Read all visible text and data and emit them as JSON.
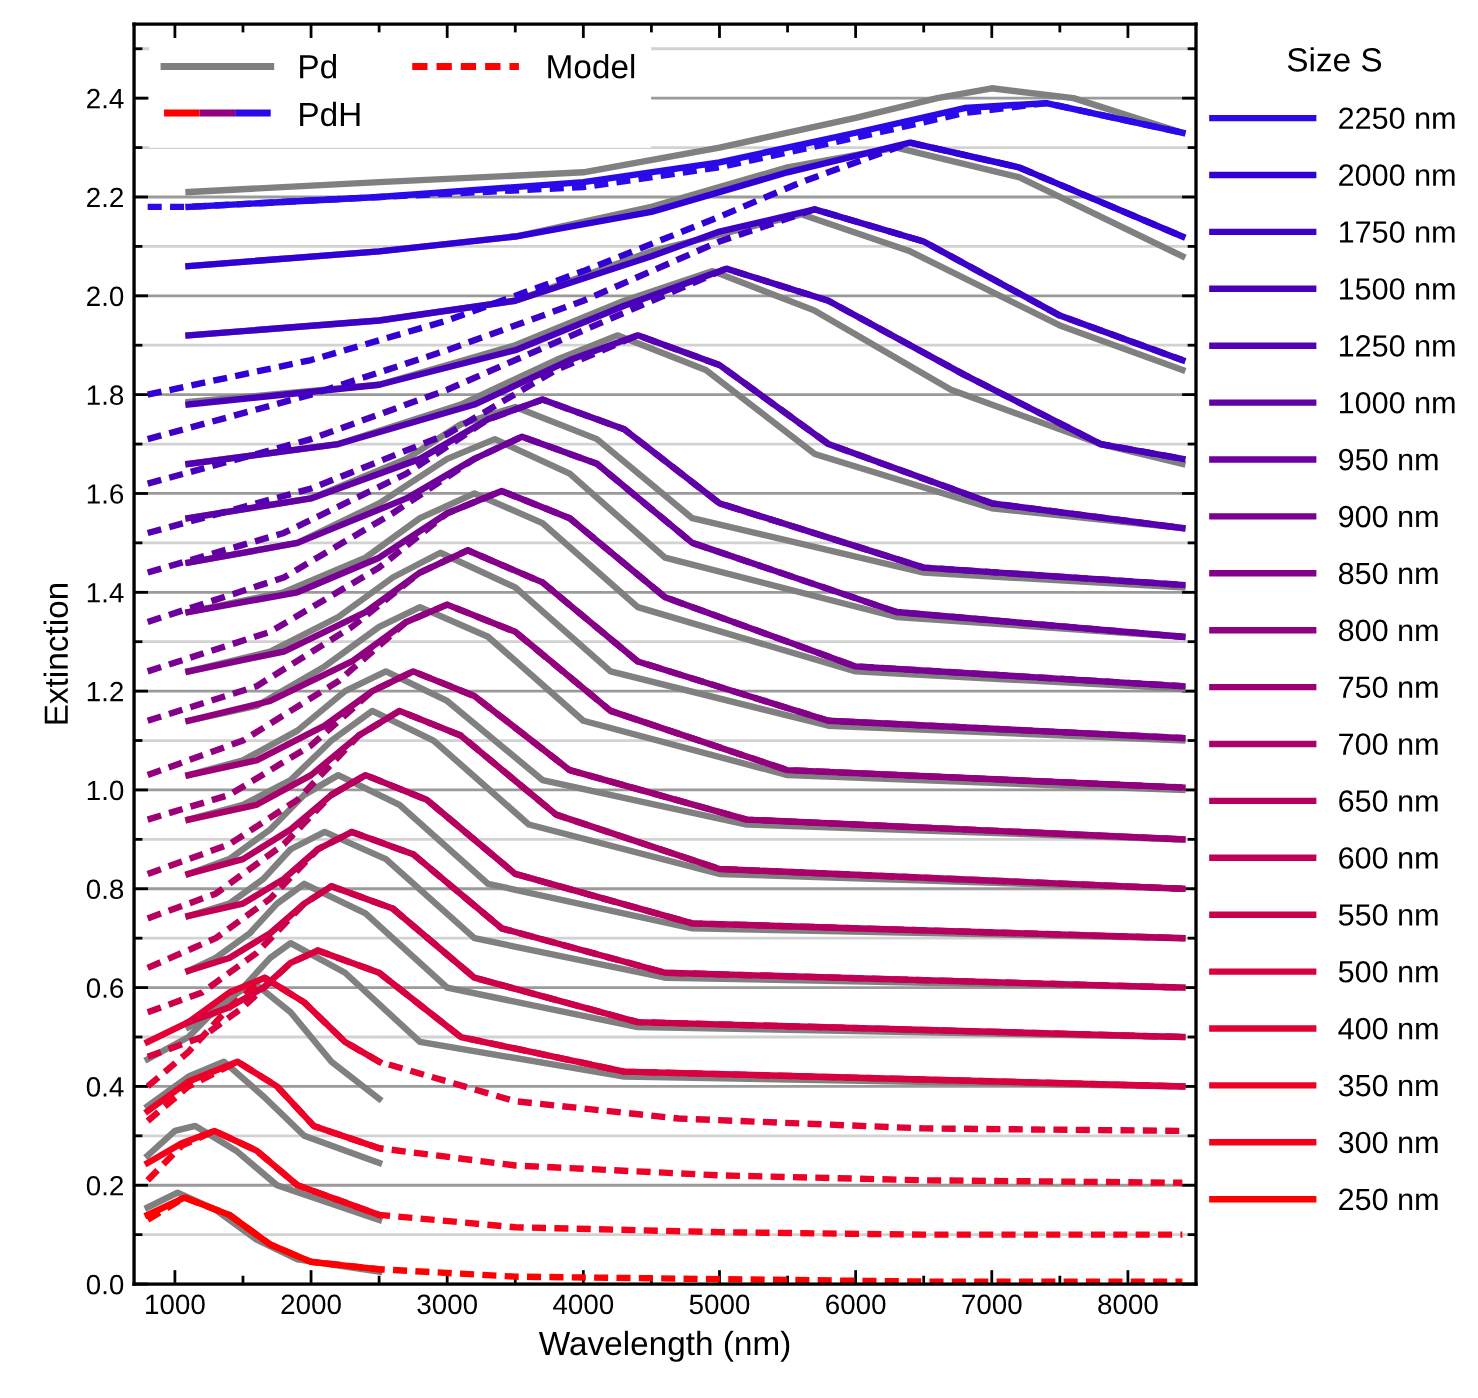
{
  "chart_data": {
    "type": "line",
    "xlabel": "Wavelength (nm)",
    "ylabel": "Extinction",
    "legend_title": "Size S",
    "legend": "top right",
    "grid": "y",
    "annotations": [
      "PdH"
    ],
    "xlim": [
      700,
      8500
    ],
    "ylim": [
      0,
      2.55
    ],
    "xticks": [
      1000,
      {
        "value": 1500,
        "label": null
      },
      2000,
      {
        "value": 2500,
        "label": null
      },
      3000,
      {
        "value": 3500,
        "label": null
      },
      4000,
      {
        "value": 4500,
        "label": null
      },
      5000,
      {
        "value": 5500,
        "label": null
      },
      6000,
      {
        "value": 6500,
        "label": null
      },
      7000,
      {
        "value": 7500,
        "label": null
      },
      8000
    ],
    "yticks": [
      {
        "value": 0,
        "label": "0.0"
      },
      {
        "value": 0.1,
        "label": null
      },
      0.2,
      {
        "value": 0.3,
        "label": null
      },
      0.4,
      {
        "value": 0.5,
        "label": null
      },
      0.6,
      {
        "value": 0.7,
        "label": null
      },
      0.8,
      {
        "value": 0.9,
        "label": null
      },
      {
        "value": 1,
        "label": "1.0"
      },
      {
        "value": 1.1,
        "label": null
      },
      1.2,
      {
        "value": 1.3,
        "label": null
      },
      1.4,
      {
        "value": 1.5,
        "label": null
      },
      1.6,
      {
        "value": 1.7,
        "label": null
      },
      1.8,
      {
        "value": 1.9,
        "label": null
      },
      {
        "value": 2,
        "label": "2.0"
      },
      {
        "value": 2.1,
        "label": null
      },
      2.2,
      {
        "value": 2.3,
        "label": null
      },
      2.4,
      {
        "value": 2.5,
        "label": null
      }
    ],
    "series": [
      {
        "name": "Pd",
        "color": "#808080",
        "line_style": "solid",
        "x": [
          800,
          1020,
          1300,
          1600,
          1900,
          2500
        ],
        "values": [
          0.155,
          0.185,
          0.15,
          0.09,
          0.05,
          0.025
        ]
      },
      {
        "color": "#808080",
        "line_style": "solid",
        "x": [
          800,
          1000,
          1150,
          1450,
          1750,
          2500
        ],
        "values": [
          0.26,
          0.31,
          0.32,
          0.27,
          0.2,
          0.13
        ]
      },
      {
        "color": "#808080",
        "line_style": "solid",
        "x": [
          800,
          1100,
          1360,
          1650,
          1950,
          2500
        ],
        "values": [
          0.36,
          0.42,
          0.45,
          0.38,
          0.3,
          0.245
        ]
      },
      {
        "color": "#808080",
        "line_style": "solid",
        "x": [
          800,
          1100,
          1350,
          1580,
          1850,
          2150,
          2500
        ],
        "values": [
          0.455,
          0.5,
          0.57,
          0.61,
          0.55,
          0.45,
          0.375
        ]
      },
      {
        "color": "#808080",
        "line_style": "solid",
        "x": [
          1100,
          1300,
          1500,
          1700,
          1850,
          2250,
          2800,
          4300,
          8400
        ],
        "values": [
          0.52,
          0.55,
          0.6,
          0.66,
          0.69,
          0.63,
          0.49,
          0.42,
          0.4
        ]
      },
      {
        "color": "#808080",
        "line_style": "solid",
        "x": [
          1100,
          1300,
          1550,
          1750,
          1950,
          2400,
          3000,
          4400,
          8400
        ],
        "values": [
          0.634,
          0.66,
          0.71,
          0.77,
          0.81,
          0.75,
          0.6,
          0.52,
          0.5
        ]
      },
      {
        "color": "#808080",
        "line_style": "solid",
        "x": [
          1100,
          1400,
          1650,
          1850,
          2100,
          2550,
          3200,
          4600,
          8400
        ],
        "values": [
          0.745,
          0.77,
          0.82,
          0.88,
          0.915,
          0.86,
          0.7,
          0.62,
          0.6
        ]
      },
      {
        "color": "#808080",
        "line_style": "solid",
        "x": [
          1100,
          1400,
          1700,
          1950,
          2200,
          2650,
          3300,
          4800,
          8400
        ],
        "values": [
          0.83,
          0.86,
          0.92,
          0.99,
          1.03,
          0.97,
          0.81,
          0.72,
          0.7
        ]
      },
      {
        "color": "#808080",
        "line_style": "solid",
        "x": [
          1100,
          1500,
          1850,
          2150,
          2450,
          2900,
          3600,
          5000,
          8400
        ],
        "values": [
          0.94,
          0.97,
          1.02,
          1.1,
          1.16,
          1.1,
          0.93,
          0.83,
          0.8
        ]
      },
      {
        "color": "#808080",
        "line_style": "solid",
        "x": [
          1100,
          1500,
          1900,
          2250,
          2550,
          3000,
          3700,
          5200,
          8400
        ],
        "values": [
          1.03,
          1.06,
          1.12,
          1.2,
          1.24,
          1.18,
          1.02,
          0.93,
          0.9
        ]
      },
      {
        "color": "#808080",
        "line_style": "solid",
        "x": [
          1100,
          1600,
          2100,
          2500,
          2800,
          3300,
          4000,
          5500,
          8400
        ],
        "values": [
          1.14,
          1.17,
          1.25,
          1.33,
          1.37,
          1.31,
          1.14,
          1.03,
          1.0
        ]
      },
      {
        "color": "#808080",
        "line_style": "solid",
        "x": [
          1100,
          1700,
          2200,
          2600,
          2950,
          3500,
          4200,
          5800,
          8400
        ],
        "values": [
          1.24,
          1.28,
          1.35,
          1.43,
          1.48,
          1.41,
          1.24,
          1.13,
          1.1
        ]
      },
      {
        "color": "#808080",
        "line_style": "solid",
        "x": [
          1100,
          1800,
          2400,
          2800,
          3200,
          3700,
          4400,
          6000,
          8400
        ],
        "values": [
          1.36,
          1.4,
          1.47,
          1.55,
          1.6,
          1.54,
          1.37,
          1.24,
          1.205
        ]
      },
      {
        "color": "#808080",
        "line_style": "solid",
        "x": [
          1100,
          1900,
          2500,
          3000,
          3350,
          3900,
          4600,
          6300,
          8400
        ],
        "values": [
          1.46,
          1.5,
          1.58,
          1.67,
          1.71,
          1.64,
          1.47,
          1.35,
          1.31
        ]
      },
      {
        "color": "#808080",
        "line_style": "solid",
        "x": [
          1100,
          2000,
          2700,
          3100,
          3500,
          4100,
          4800,
          6500,
          8400
        ],
        "values": [
          1.55,
          1.59,
          1.67,
          1.74,
          1.775,
          1.71,
          1.55,
          1.44,
          1.41
        ]
      },
      {
        "color": "#808080",
        "line_style": "solid",
        "x": [
          1100,
          2200,
          3100,
          3800,
          4250,
          4900,
          5700,
          7000,
          8400
        ],
        "values": [
          1.66,
          1.7,
          1.78,
          1.87,
          1.92,
          1.85,
          1.68,
          1.57,
          1.53
        ]
      },
      {
        "color": "#808080",
        "line_style": "solid",
        "x": [
          1100,
          2500,
          3500,
          4300,
          4950,
          5700,
          6700,
          7800,
          8400
        ],
        "values": [
          1.785,
          1.82,
          1.9,
          1.99,
          2.05,
          1.97,
          1.81,
          1.7,
          1.66
        ]
      },
      {
        "color": "#808080",
        "line_style": "solid",
        "x": [
          1100,
          2500,
          3500,
          4500,
          5600,
          6400,
          7500,
          8400
        ],
        "values": [
          1.92,
          1.95,
          1.99,
          2.09,
          2.165,
          2.09,
          1.94,
          1.85
        ]
      },
      {
        "color": "#808080",
        "line_style": "solid",
        "x": [
          1100,
          2500,
          3500,
          4500,
          5500,
          6300,
          7200,
          8400
        ],
        "values": [
          2.06,
          2.09,
          2.12,
          2.18,
          2.26,
          2.3,
          2.24,
          2.08
        ]
      },
      {
        "color": "#808080",
        "line_style": "solid",
        "x": [
          1100,
          2500,
          4000,
          5000,
          6000,
          6600,
          7000,
          7600,
          8400
        ],
        "values": [
          2.21,
          2.23,
          2.25,
          2.3,
          2.36,
          2.4,
          2.42,
          2.4,
          2.33
        ]
      },
      {
        "name": "250 nm",
        "color": "#ff0000",
        "line_style": "solid",
        "x": [
          800,
          1070,
          1400,
          1700,
          2000,
          2500
        ],
        "values": [
          0.14,
          0.175,
          0.14,
          0.08,
          0.045,
          0.03
        ]
      },
      {
        "name": "300 nm",
        "color": "#f7001a",
        "line_style": "solid",
        "x": [
          800,
          1050,
          1290,
          1600,
          1900,
          2500
        ],
        "values": [
          0.245,
          0.285,
          0.31,
          0.27,
          0.2,
          0.14
        ]
      },
      {
        "name": "350 nm",
        "color": "#ee0027",
        "line_style": "solid",
        "x": [
          800,
          1100,
          1460,
          1750,
          2020,
          2500
        ],
        "values": [
          0.35,
          0.41,
          0.45,
          0.4,
          0.32,
          0.275
        ]
      },
      {
        "name": "400 nm",
        "color": "#e50033",
        "line_style": "solid",
        "x": [
          800,
          1100,
          1400,
          1660,
          1950,
          2250,
          2500
        ],
        "values": [
          0.49,
          0.53,
          0.59,
          0.62,
          0.57,
          0.49,
          0.45
        ]
      },
      {
        "name": "500 nm",
        "color": "#d9003f",
        "line_style": "solid",
        "x": [
          1100,
          1400,
          1650,
          1850,
          2050,
          2500,
          3100,
          4300,
          8400
        ],
        "values": [
          0.53,
          0.56,
          0.6,
          0.65,
          0.675,
          0.63,
          0.5,
          0.43,
          0.4
        ]
      },
      {
        "name": "550 nm",
        "color": "#cc004a",
        "line_style": "solid",
        "x": [
          1100,
          1400,
          1700,
          1950,
          2150,
          2600,
          3200,
          4400,
          8400
        ],
        "values": [
          0.634,
          0.66,
          0.71,
          0.77,
          0.805,
          0.76,
          0.62,
          0.53,
          0.5
        ]
      },
      {
        "name": "600 nm",
        "color": "#c10055",
        "line_style": "solid",
        "x": [
          1100,
          1500,
          1800,
          2050,
          2300,
          2750,
          3400,
          4600,
          8400
        ],
        "values": [
          0.745,
          0.77,
          0.82,
          0.88,
          0.915,
          0.87,
          0.72,
          0.63,
          0.6
        ]
      },
      {
        "name": "650 nm",
        "color": "#b5005f",
        "line_style": "solid",
        "x": [
          1100,
          1500,
          1850,
          2150,
          2400,
          2850,
          3500,
          4800,
          8400
        ],
        "values": [
          0.83,
          0.86,
          0.92,
          0.99,
          1.03,
          0.98,
          0.83,
          0.73,
          0.7
        ]
      },
      {
        "name": "700 nm",
        "color": "#a90069",
        "line_style": "solid",
        "x": [
          1100,
          1600,
          2000,
          2350,
          2650,
          3100,
          3800,
          5000,
          8400
        ],
        "values": [
          0.94,
          0.97,
          1.03,
          1.11,
          1.16,
          1.11,
          0.95,
          0.84,
          0.8
        ]
      },
      {
        "name": "750 nm",
        "color": "#9d0074",
        "line_style": "solid",
        "x": [
          1100,
          1600,
          2100,
          2450,
          2750,
          3200,
          3900,
          5200,
          8400
        ],
        "values": [
          1.03,
          1.06,
          1.13,
          1.2,
          1.24,
          1.19,
          1.04,
          0.94,
          0.9
        ]
      },
      {
        "name": "800 nm",
        "color": "#91007e",
        "line_style": "solid",
        "x": [
          1100,
          1700,
          2300,
          2700,
          3000,
          3500,
          4200,
          5500,
          8400
        ],
        "values": [
          1.14,
          1.18,
          1.26,
          1.34,
          1.375,
          1.32,
          1.16,
          1.04,
          1.005
        ]
      },
      {
        "name": "850 nm",
        "color": "#850088",
        "line_style": "solid",
        "x": [
          1100,
          1800,
          2400,
          2800,
          3150,
          3700,
          4400,
          5800,
          8400
        ],
        "values": [
          1.24,
          1.28,
          1.36,
          1.44,
          1.485,
          1.42,
          1.26,
          1.14,
          1.105
        ]
      },
      {
        "name": "900 nm",
        "color": "#790092",
        "line_style": "solid",
        "x": [
          1100,
          1900,
          2500,
          3000,
          3400,
          3900,
          4600,
          6000,
          8400
        ],
        "values": [
          1.36,
          1.4,
          1.47,
          1.56,
          1.605,
          1.55,
          1.39,
          1.25,
          1.21
        ]
      },
      {
        "name": "950 nm",
        "color": "#6d009c",
        "line_style": "solid",
        "x": [
          1100,
          1900,
          2700,
          3200,
          3550,
          4100,
          4800,
          6300,
          8400
        ],
        "values": [
          1.46,
          1.5,
          1.59,
          1.67,
          1.715,
          1.66,
          1.5,
          1.36,
          1.31
        ]
      },
      {
        "name": "1000 nm",
        "color": "#6100a6",
        "line_style": "solid",
        "x": [
          1100,
          2000,
          2800,
          3300,
          3700,
          4300,
          5000,
          6500,
          8400
        ],
        "values": [
          1.55,
          1.59,
          1.67,
          1.75,
          1.79,
          1.73,
          1.58,
          1.45,
          1.415
        ]
      },
      {
        "name": "1250 nm",
        "color": "#5500b0",
        "line_style": "solid",
        "x": [
          1100,
          2200,
          3200,
          3900,
          4400,
          5000,
          5800,
          7000,
          8400
        ],
        "values": [
          1.66,
          1.7,
          1.78,
          1.87,
          1.92,
          1.86,
          1.7,
          1.58,
          1.53
        ]
      },
      {
        "name": "1500 nm",
        "color": "#4900bb",
        "line_style": "solid",
        "x": [
          1100,
          2500,
          3500,
          4300,
          5050,
          5800,
          6800,
          7800,
          8400
        ],
        "values": [
          1.78,
          1.82,
          1.89,
          1.98,
          2.055,
          1.99,
          1.84,
          1.7,
          1.67
        ]
      },
      {
        "name": "1750 nm",
        "color": "#3d00c6",
        "line_style": "solid",
        "x": [
          1100,
          2500,
          3500,
          4500,
          5000,
          5700,
          6500,
          7500,
          8400
        ],
        "values": [
          1.92,
          1.95,
          1.99,
          2.08,
          2.13,
          2.175,
          2.11,
          1.96,
          1.87
        ]
      },
      {
        "name": "2000 nm",
        "color": "#3100d6",
        "line_style": "solid",
        "x": [
          1100,
          2500,
          3500,
          4500,
          5500,
          6400,
          7200,
          8400
        ],
        "values": [
          2.06,
          2.09,
          2.12,
          2.17,
          2.25,
          2.31,
          2.26,
          2.12
        ]
      },
      {
        "name": "2250 nm",
        "color": "#2a0ae8",
        "line_style": "solid",
        "x": [
          1100,
          2500,
          4000,
          5000,
          6000,
          6800,
          7400,
          8400
        ],
        "values": [
          2.18,
          2.2,
          2.23,
          2.27,
          2.33,
          2.38,
          2.39,
          2.33
        ]
      },
      {
        "name": "Model",
        "color": "#ff0000",
        "line_style": "dashed",
        "x": [
          800,
          1070,
          1400,
          1700,
          2000,
          2500,
          3500,
          5000,
          6500,
          8400
        ],
        "values": [
          0.13,
          0.175,
          0.14,
          0.08,
          0.045,
          0.03,
          0.015,
          0.01,
          0.005,
          0.005
        ]
      },
      {
        "color": "#f7001a",
        "line_style": "dashed",
        "x": [
          800,
          1050,
          1290,
          1600,
          1900,
          2500,
          3500,
          5000,
          6500,
          8400
        ],
        "values": [
          0.21,
          0.28,
          0.31,
          0.27,
          0.2,
          0.14,
          0.115,
          0.105,
          0.1,
          0.1
        ]
      },
      {
        "color": "#ee0027",
        "line_style": "dashed",
        "x": [
          800,
          1100,
          1460,
          1750,
          2020,
          2500,
          3500,
          5000,
          6500,
          8400
        ],
        "values": [
          0.33,
          0.4,
          0.45,
          0.4,
          0.32,
          0.275,
          0.24,
          0.22,
          0.21,
          0.205
        ]
      },
      {
        "color": "#e50033",
        "line_style": "dashed",
        "x": [
          800,
          1100,
          1400,
          1660,
          1950,
          2250,
          2500,
          3500,
          4700,
          6500,
          8400
        ],
        "values": [
          0.4,
          0.47,
          0.56,
          0.62,
          0.57,
          0.49,
          0.45,
          0.37,
          0.335,
          0.315,
          0.31
        ]
      },
      {
        "color": "#d9003f",
        "line_style": "dashed",
        "x": [
          800,
          1200,
          1500,
          1850,
          2050,
          2500,
          3100,
          4300,
          8400
        ],
        "values": [
          0.46,
          0.5,
          0.56,
          0.65,
          0.675,
          0.63,
          0.5,
          0.43,
          0.4
        ]
      },
      {
        "color": "#cc004a",
        "line_style": "dashed",
        "x": [
          800,
          1200,
          1600,
          1950,
          2150,
          2600,
          3200,
          4400,
          8400
        ],
        "values": [
          0.55,
          0.59,
          0.67,
          0.77,
          0.805,
          0.76,
          0.62,
          0.53,
          0.5
        ]
      },
      {
        "color": "#c10055",
        "line_style": "dashed",
        "x": [
          800,
          1300,
          1700,
          2050,
          2300,
          2750,
          3400,
          4600,
          8400
        ],
        "values": [
          0.64,
          0.7,
          0.78,
          0.88,
          0.915,
          0.87,
          0.72,
          0.63,
          0.6
        ]
      },
      {
        "color": "#b5005f",
        "line_style": "dashed",
        "x": [
          800,
          1300,
          1800,
          2150,
          2400,
          2850,
          3500,
          4800,
          8400
        ],
        "values": [
          0.74,
          0.79,
          0.89,
          0.99,
          1.03,
          0.98,
          0.83,
          0.73,
          0.7
        ]
      },
      {
        "color": "#a90069",
        "line_style": "dashed",
        "x": [
          800,
          1400,
          1900,
          2350,
          2650,
          3100,
          3800,
          5000,
          8400
        ],
        "values": [
          0.83,
          0.89,
          0.98,
          1.11,
          1.16,
          1.11,
          0.95,
          0.84,
          0.8
        ]
      },
      {
        "color": "#9d0074",
        "line_style": "dashed",
        "x": [
          800,
          1400,
          2000,
          2450,
          2750,
          3200,
          3900,
          5200,
          8400
        ],
        "values": [
          0.94,
          0.99,
          1.09,
          1.2,
          1.24,
          1.19,
          1.04,
          0.94,
          0.9
        ]
      },
      {
        "color": "#91007e",
        "line_style": "dashed",
        "x": [
          800,
          1500,
          2200,
          2700,
          3000,
          3500,
          4200,
          5500,
          8400
        ],
        "values": [
          1.03,
          1.1,
          1.22,
          1.34,
          1.375,
          1.32,
          1.16,
          1.04,
          1.005
        ]
      },
      {
        "color": "#850088",
        "line_style": "dashed",
        "x": [
          800,
          1600,
          2300,
          2800,
          3150,
          3700,
          4400,
          5800,
          8400
        ],
        "values": [
          1.14,
          1.21,
          1.33,
          1.44,
          1.485,
          1.42,
          1.26,
          1.14,
          1.105
        ]
      },
      {
        "color": "#790092",
        "line_style": "dashed",
        "x": [
          800,
          1700,
          2500,
          3000,
          3400,
          3900,
          4600,
          6000,
          8400
        ],
        "values": [
          1.24,
          1.32,
          1.45,
          1.56,
          1.605,
          1.55,
          1.39,
          1.25,
          1.21
        ]
      },
      {
        "color": "#6d009c",
        "line_style": "dashed",
        "x": [
          800,
          1800,
          2600,
          3200,
          3550,
          4100,
          4800,
          6300,
          8400
        ],
        "values": [
          1.34,
          1.43,
          1.56,
          1.67,
          1.715,
          1.66,
          1.5,
          1.36,
          1.31
        ]
      },
      {
        "color": "#6100a6",
        "line_style": "dashed",
        "x": [
          800,
          1800,
          2700,
          3300,
          3700,
          4300,
          5000,
          6500,
          8400
        ],
        "values": [
          1.44,
          1.52,
          1.64,
          1.75,
          1.79,
          1.73,
          1.58,
          1.45,
          1.415
        ]
      },
      {
        "color": "#5500b0",
        "line_style": "dashed",
        "x": [
          800,
          2000,
          3000,
          3800,
          4400,
          5000,
          5800,
          7000,
          8400
        ],
        "values": [
          1.52,
          1.61,
          1.72,
          1.85,
          1.92,
          1.86,
          1.7,
          1.58,
          1.53
        ]
      },
      {
        "color": "#4900bb",
        "line_style": "dashed",
        "x": [
          800,
          2000,
          3000,
          4000,
          5050,
          5800,
          6800,
          7800,
          8400
        ],
        "values": [
          1.62,
          1.71,
          1.81,
          1.93,
          2.055,
          1.99,
          1.84,
          1.7,
          1.67
        ]
      },
      {
        "color": "#3d00c6",
        "line_style": "dashed",
        "x": [
          800,
          2000,
          3000,
          4000,
          5000,
          5700,
          6500,
          7500,
          8400
        ],
        "values": [
          1.71,
          1.8,
          1.89,
          1.99,
          2.11,
          2.175,
          2.11,
          1.96,
          1.87
        ]
      },
      {
        "color": "#3100d6",
        "line_style": "dashed",
        "x": [
          800,
          2000,
          3000,
          4000,
          5000,
          5600,
          6400,
          7200,
          8400
        ],
        "values": [
          1.8,
          1.87,
          1.95,
          2.05,
          2.16,
          2.23,
          2.31,
          2.26,
          2.12
        ]
      },
      {
        "color": "#2a0ae8",
        "line_style": "dashed",
        "x": [
          800,
          1100,
          2500,
          4000,
          5000,
          6000,
          6800,
          7400,
          8400
        ],
        "values": [
          2.18,
          2.18,
          2.2,
          2.22,
          2.26,
          2.32,
          2.37,
          2.39,
          2.33
        ]
      }
    ]
  }
}
